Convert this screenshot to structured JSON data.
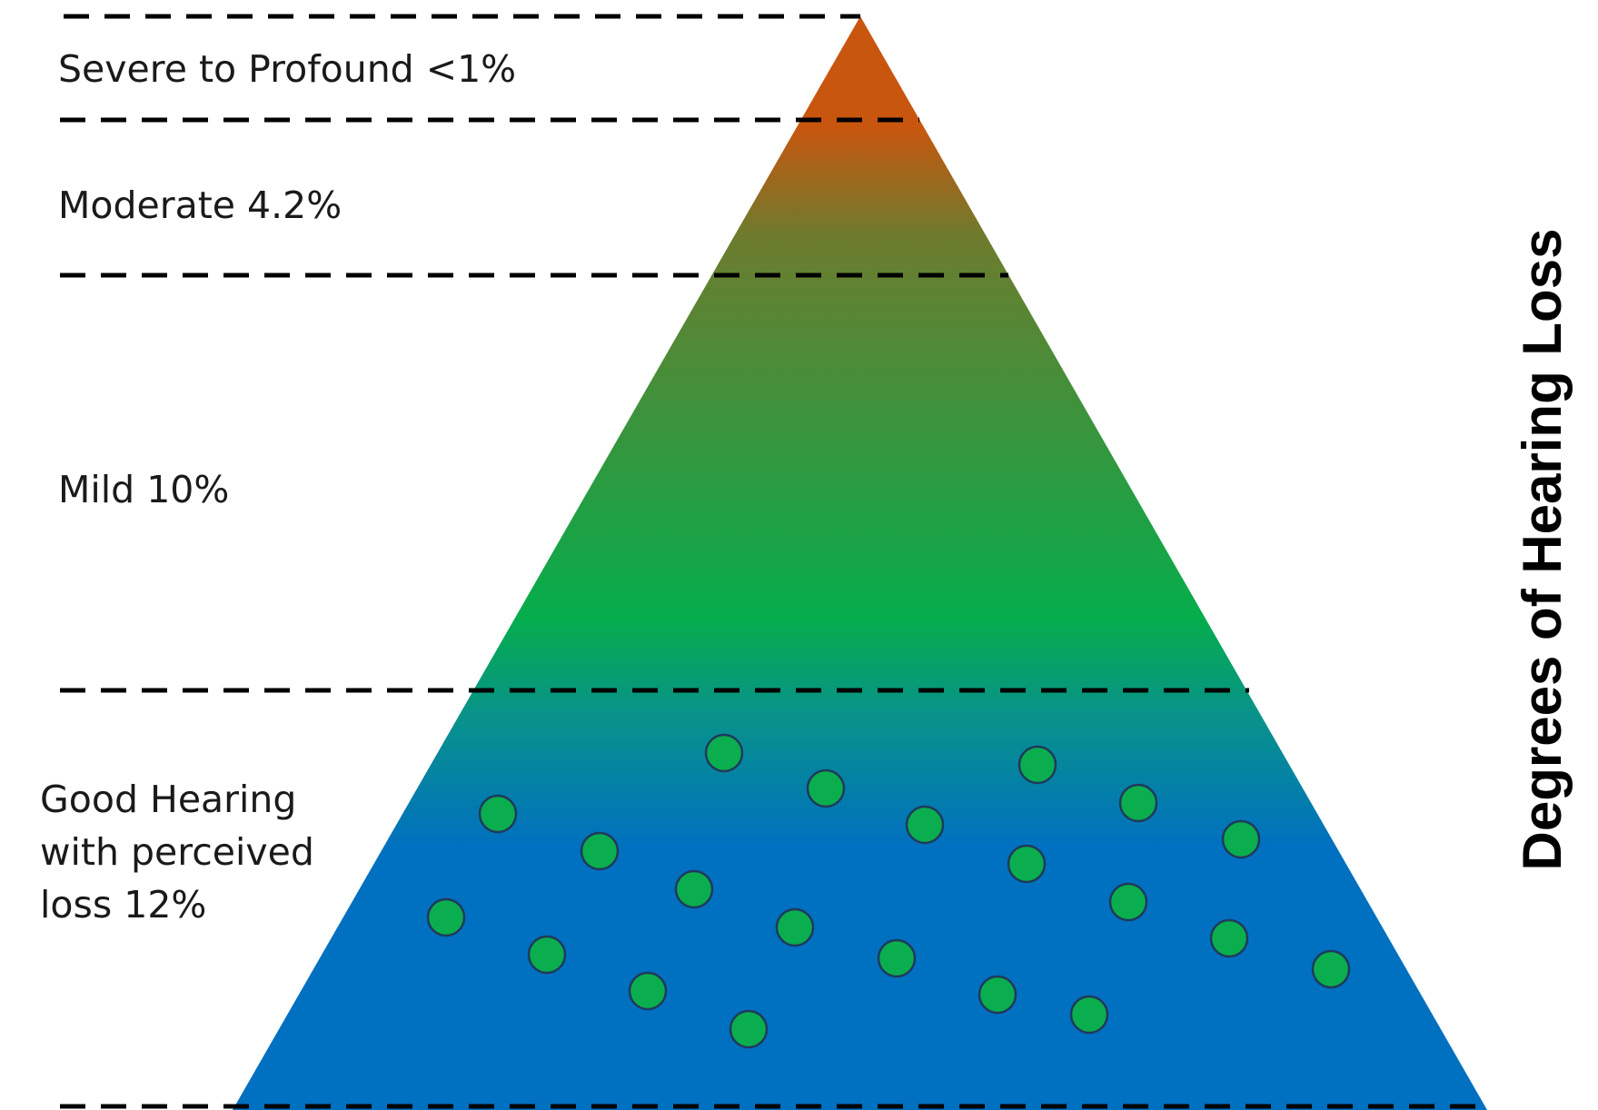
{
  "diagram": {
    "side_title": "Degrees of Hearing Loss",
    "tiers": [
      {
        "label": "Severe to Profound <1%"
      },
      {
        "label": "Moderate 4.2%"
      },
      {
        "label": "Mild 10%"
      },
      {
        "label_lines": [
          "Good Hearing",
          "with perceived",
          "loss 12%"
        ]
      }
    ],
    "colors": {
      "apex": "#c9560e",
      "upper_band": "#6e7b2e",
      "middle_green": "#05ad4c",
      "lower_teal": "#08928a",
      "base_blue": "#0070c0",
      "dot_fill": "#0aae4e"
    }
  }
}
